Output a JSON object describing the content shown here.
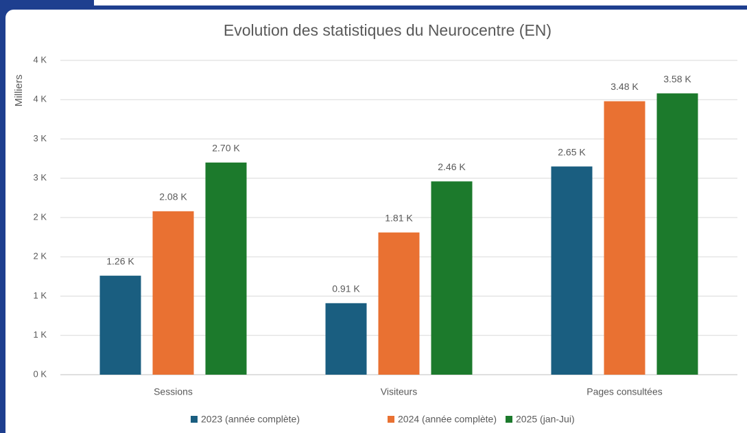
{
  "chart_data": {
    "type": "bar",
    "title": "Evolution des statistiques du Neurocentre (EN)",
    "y_label": "Milliers",
    "categories": [
      "Sessions",
      "Visiteurs",
      "Pages consultées"
    ],
    "series": [
      {
        "name": "2023 (année complète)",
        "color": "#1a5e80",
        "values": [
          1.26,
          0.91,
          2.65
        ],
        "value_labels": [
          "1.26 K",
          "0.91 K",
          "2.65 K"
        ]
      },
      {
        "name": "2024 (année complète)",
        "color": "#e97132",
        "values": [
          2.08,
          1.81,
          3.48
        ],
        "value_labels": [
          "2.08 K",
          "1.81 K",
          "3.48 K"
        ]
      },
      {
        "name": "2025 (jan-Jui)",
        "color": "#1c7a2c",
        "values": [
          2.7,
          2.46,
          3.58
        ],
        "value_labels": [
          "2.70 K",
          "2.46 K",
          "3.58 K"
        ]
      }
    ],
    "ylim": [
      0,
      4
    ],
    "yticks": [
      {
        "value": 0,
        "label": "0 K"
      },
      {
        "value": 0.5,
        "label": "1 K"
      },
      {
        "value": 1,
        "label": "1 K"
      },
      {
        "value": 1.5,
        "label": "2 K"
      },
      {
        "value": 2,
        "label": "2 K"
      },
      {
        "value": 2.5,
        "label": "3 K"
      },
      {
        "value": 3,
        "label": "3 K"
      },
      {
        "value": 3.5,
        "label": "4 K"
      },
      {
        "value": 4,
        "label": "4 K"
      }
    ],
    "grid": true,
    "legend": "bottom"
  }
}
